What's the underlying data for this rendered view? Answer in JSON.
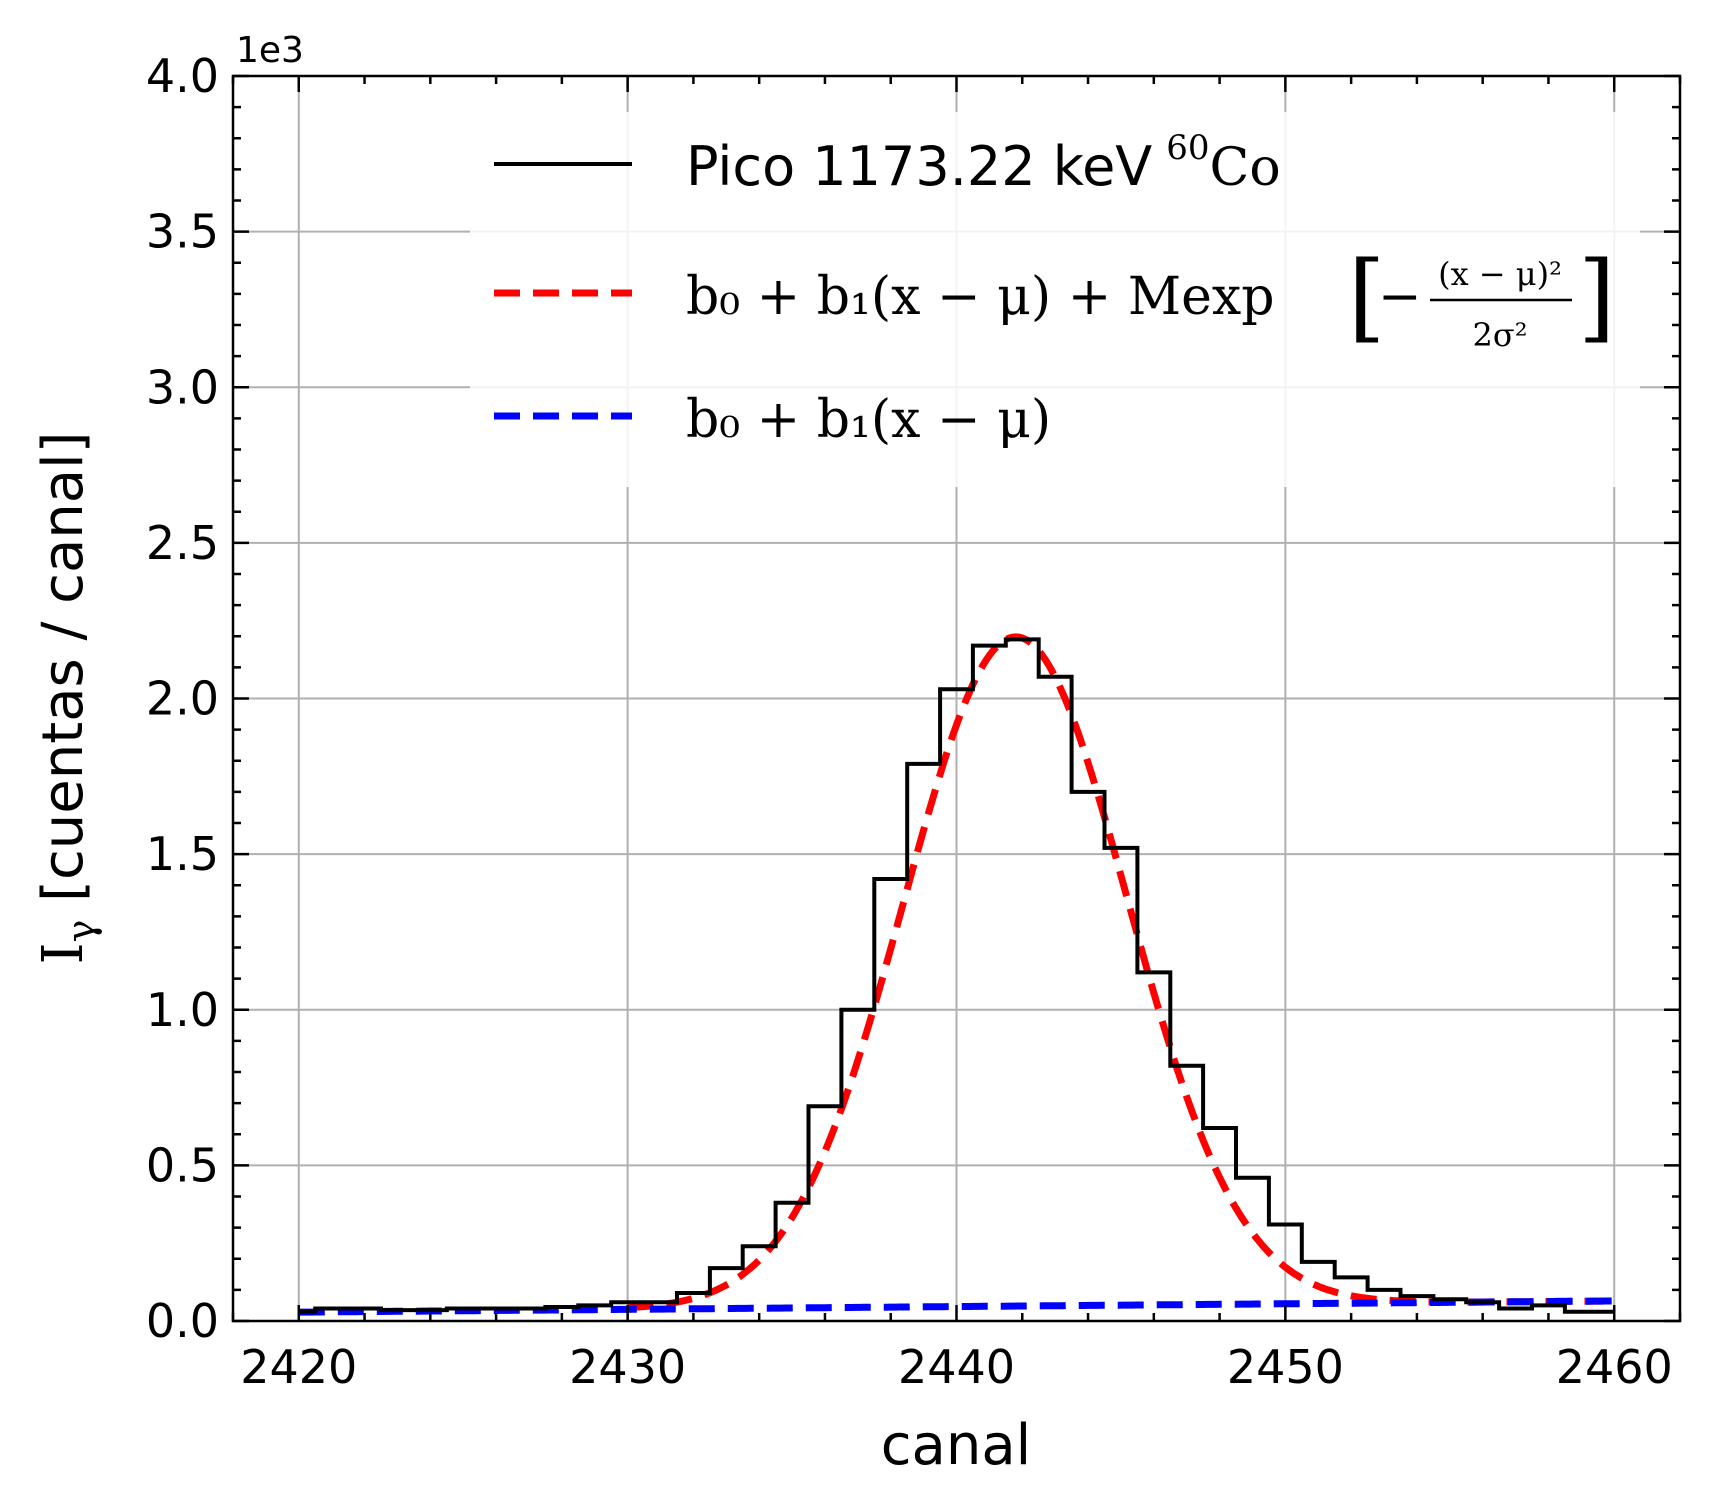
{
  "chart_data": {
    "type": "line",
    "xlabel": "canal",
    "ylabel_symbol": "I",
    "ylabel_subscript": "γ",
    "ylabel_text": " [cuentas / canal]",
    "y_offset_label": "1e3",
    "xlim": [
      2418,
      2462
    ],
    "ylim": [
      0,
      4000
    ],
    "x_ticks": [
      2420,
      2430,
      2440,
      2450,
      2460
    ],
    "x_tick_labels": [
      "2420",
      "2430",
      "2440",
      "2450",
      "2460"
    ],
    "y_ticks": [
      0,
      500,
      1000,
      1500,
      2000,
      2500,
      3000,
      3500,
      4000
    ],
    "y_tick_labels": [
      "0.0",
      "0.5",
      "1.0",
      "1.5",
      "2.0",
      "2.5",
      "3.0",
      "3.5",
      "4.0"
    ],
    "grid": true,
    "legend_position": "top-center",
    "series": [
      {
        "name": "Pico 1173.22 keV",
        "name_superscript": "60",
        "name_element": "Co",
        "style": "step",
        "color": "#000000",
        "x": [
          2420,
          2421,
          2422,
          2423,
          2424,
          2425,
          2426,
          2427,
          2428,
          2429,
          2430,
          2431,
          2432,
          2433,
          2434,
          2435,
          2436,
          2437,
          2438,
          2439,
          2440,
          2441,
          2442,
          2443,
          2444,
          2445,
          2446,
          2447,
          2448,
          2449,
          2450,
          2451,
          2452,
          2453,
          2454,
          2455,
          2456,
          2457,
          2458,
          2459
        ],
        "values": [
          30,
          40,
          40,
          35,
          35,
          40,
          40,
          40,
          45,
          50,
          60,
          60,
          90,
          170,
          240,
          380,
          690,
          1000,
          1420,
          1790,
          2030,
          2170,
          2190,
          2070,
          1700,
          1520,
          1120,
          820,
          620,
          460,
          310,
          190,
          140,
          100,
          80,
          70,
          60,
          40,
          50,
          30
        ]
      },
      {
        "name": "b₀ + b₁(x − μ) + Mexp",
        "name_frac_num": "(x − μ)²",
        "name_frac_den": "2σ²",
        "style": "dashed",
        "color": "#ff0000",
        "model": "gauss_linear",
        "b0": 48,
        "b1": 0.9,
        "mu": 2441.8,
        "M": 2150,
        "sigma": 3.4,
        "x_range": [
          2430,
          2460
        ]
      },
      {
        "name": "b₀ + b₁(x − μ)",
        "style": "dashed",
        "color": "#0000ff",
        "model": "linear",
        "b0": 48,
        "b1": 0.9,
        "mu": 2441.8,
        "x_range": [
          2420,
          2460
        ]
      }
    ]
  }
}
